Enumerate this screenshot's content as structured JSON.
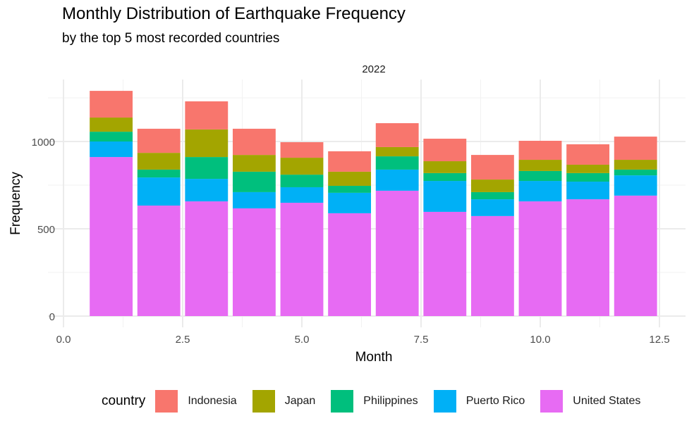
{
  "chart_data": {
    "type": "bar",
    "stacked": true,
    "title": "Monthly Distribution of Earthquake Frequency",
    "subtitle": "by the top 5 most recorded countries",
    "facet_label": "2022",
    "xlabel": "Month",
    "ylabel": "Frequency",
    "x": [
      1,
      2,
      3,
      4,
      5,
      6,
      7,
      8,
      9,
      10,
      11,
      12
    ],
    "xlim": [
      0,
      12.9
    ],
    "ylim": [
      0,
      1340
    ],
    "x_ticks": [
      0,
      2.5,
      5,
      7.5,
      10,
      12.5
    ],
    "x_tick_labels": [
      "0.0",
      "2.5",
      "5.0",
      "7.5",
      "10.0",
      "12.5"
    ],
    "y_ticks": [
      0,
      500,
      1000
    ],
    "y_tick_labels": [
      "0",
      "500",
      "1000"
    ],
    "grid": true,
    "legend_position": "bottom",
    "legend_title": "country",
    "series": [
      {
        "name": "United States",
        "color": "#E76BF3",
        "values": [
          911,
          633,
          657,
          617,
          649,
          589,
          718,
          597,
          573,
          657,
          669,
          690
        ]
      },
      {
        "name": "Puerto Rico",
        "color": "#00B0F6",
        "values": [
          89,
          161,
          129,
          93,
          89,
          117,
          121,
          177,
          96,
          117,
          101,
          116
        ]
      },
      {
        "name": "Philippines",
        "color": "#00BF7D",
        "values": [
          56,
          45,
          125,
          117,
          72,
          40,
          76,
          45,
          41,
          57,
          49,
          33
        ]
      },
      {
        "name": "Japan",
        "color": "#A3A500",
        "values": [
          81,
          96,
          158,
          96,
          97,
          81,
          53,
          68,
          72,
          64,
          48,
          56
        ]
      },
      {
        "name": "Indonesia",
        "color": "#F8766D",
        "values": [
          153,
          138,
          161,
          150,
          89,
          117,
          137,
          129,
          141,
          109,
          117,
          133
        ]
      }
    ]
  },
  "legend": {
    "title": "country",
    "items": [
      {
        "label": "Indonesia",
        "color": "#F8766D"
      },
      {
        "label": "Japan",
        "color": "#A3A500"
      },
      {
        "label": "Philippines",
        "color": "#00BF7D"
      },
      {
        "label": "Puerto Rico",
        "color": "#00B0F6"
      },
      {
        "label": "United States",
        "color": "#E76BF3"
      }
    ]
  }
}
